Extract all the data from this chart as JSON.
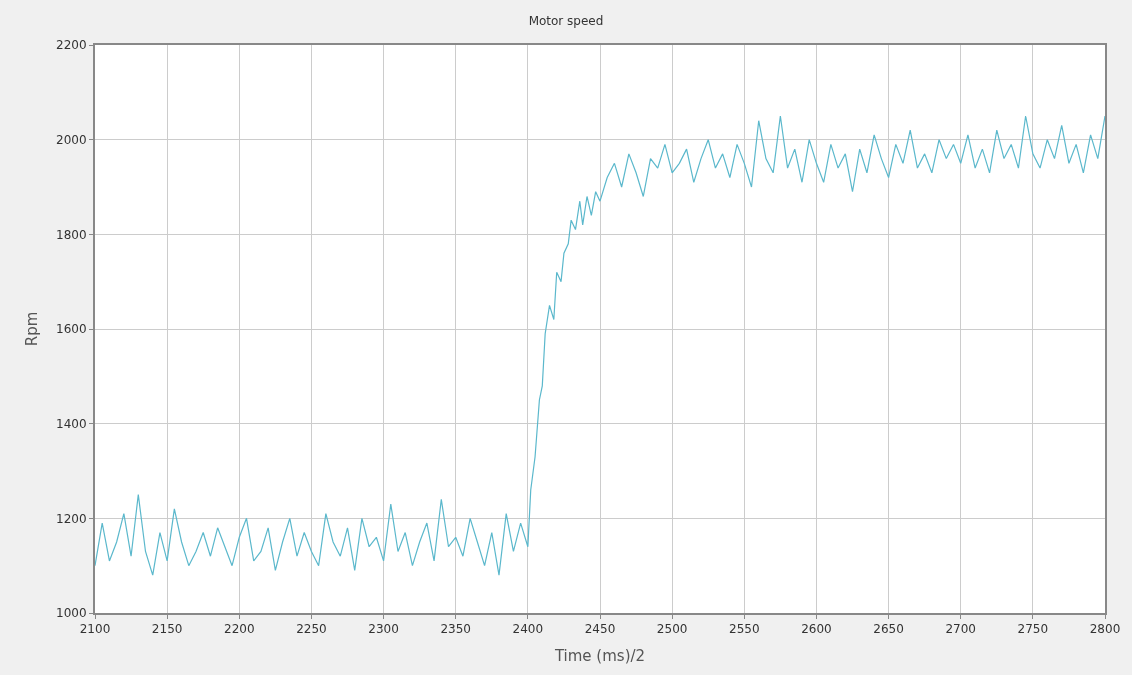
{
  "chart_data": {
    "type": "line",
    "title": "Motor speed",
    "xlabel": "Time (ms)/2",
    "ylabel": "Rpm",
    "x": [
      2100,
      2105,
      2110,
      2115,
      2120,
      2125,
      2130,
      2135,
      2140,
      2145,
      2150,
      2155,
      2160,
      2165,
      2170,
      2175,
      2180,
      2185,
      2190,
      2195,
      2200,
      2205,
      2210,
      2215,
      2220,
      2225,
      2230,
      2235,
      2240,
      2245,
      2250,
      2255,
      2260,
      2265,
      2270,
      2275,
      2280,
      2285,
      2290,
      2295,
      2300,
      2305,
      2310,
      2315,
      2320,
      2325,
      2330,
      2335,
      2340,
      2345,
      2350,
      2355,
      2360,
      2365,
      2370,
      2375,
      2380,
      2385,
      2390,
      2395,
      2400,
      2402,
      2405,
      2408,
      2410,
      2412,
      2415,
      2418,
      2420,
      2423,
      2425,
      2428,
      2430,
      2433,
      2436,
      2438,
      2441,
      2444,
      2447,
      2450,
      2455,
      2460,
      2465,
      2470,
      2475,
      2480,
      2485,
      2490,
      2495,
      2500,
      2505,
      2510,
      2515,
      2520,
      2525,
      2530,
      2535,
      2540,
      2545,
      2550,
      2555,
      2560,
      2565,
      2570,
      2575,
      2580,
      2585,
      2590,
      2595,
      2600,
      2605,
      2610,
      2615,
      2620,
      2625,
      2630,
      2635,
      2640,
      2645,
      2650,
      2655,
      2660,
      2665,
      2670,
      2675,
      2680,
      2685,
      2690,
      2695,
      2700,
      2705,
      2710,
      2715,
      2720,
      2725,
      2730,
      2735,
      2740,
      2745,
      2750,
      2755,
      2760,
      2765,
      2770,
      2775,
      2780,
      2785,
      2790,
      2795,
      2800
    ],
    "series": [
      {
        "color": "#5bb8cc",
        "values": [
          1100,
          1190,
          1110,
          1150,
          1210,
          1120,
          1250,
          1130,
          1080,
          1170,
          1110,
          1220,
          1150,
          1100,
          1130,
          1170,
          1120,
          1180,
          1140,
          1100,
          1160,
          1200,
          1110,
          1130,
          1180,
          1090,
          1150,
          1200,
          1120,
          1170,
          1130,
          1100,
          1210,
          1150,
          1120,
          1180,
          1090,
          1200,
          1140,
          1160,
          1110,
          1230,
          1130,
          1170,
          1100,
          1150,
          1190,
          1110,
          1240,
          1140,
          1160,
          1120,
          1200,
          1150,
          1100,
          1170,
          1080,
          1210,
          1130,
          1190,
          1140,
          1260,
          1330,
          1450,
          1480,
          1590,
          1650,
          1620,
          1720,
          1700,
          1760,
          1780,
          1830,
          1810,
          1870,
          1820,
          1880,
          1840,
          1890,
          1870,
          1920,
          1950,
          1900,
          1970,
          1930,
          1880,
          1960,
          1940,
          1990,
          1930,
          1950,
          1980,
          1910,
          1960,
          2000,
          1940,
          1970,
          1920,
          1990,
          1950,
          1900,
          2040,
          1960,
          1930,
          2050,
          1940,
          1980,
          1910,
          2000,
          1950,
          1910,
          1990,
          1940,
          1970,
          1890,
          1980,
          1930,
          2010,
          1960,
          1920,
          1990,
          1950,
          2020,
          1940,
          1970,
          1930,
          2000,
          1960,
          1990,
          1950,
          2010,
          1940,
          1980,
          1930,
          2020,
          1960,
          1990,
          1940,
          2050,
          1970,
          1940,
          2000,
          1960,
          2030,
          1950,
          1990,
          1930,
          2010,
          1960,
          2050
        ]
      }
    ],
    "xlim": [
      2100,
      2800
    ],
    "xticks": [
      2100,
      2150,
      2200,
      2250,
      2300,
      2350,
      2400,
      2450,
      2500,
      2550,
      2600,
      2650,
      2700,
      2750,
      2800
    ],
    "ylim": [
      1000,
      2200
    ],
    "yticks": [
      1000,
      1200,
      1400,
      1600,
      1800,
      2000,
      2200
    ],
    "grid": true,
    "marker": "none",
    "line_style": "solid"
  }
}
